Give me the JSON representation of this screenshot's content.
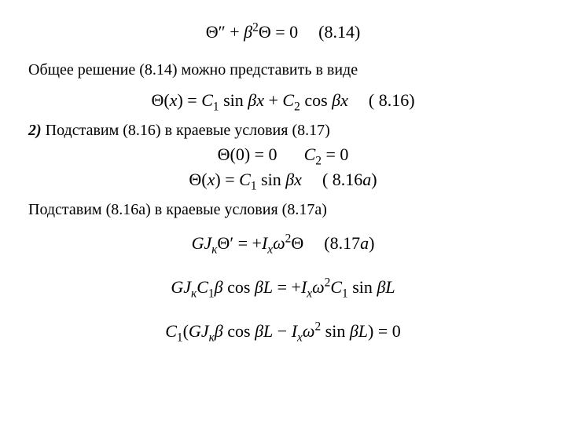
{
  "colors": {
    "background": "#ffffff",
    "text": "#000000"
  },
  "typography": {
    "font_family": "Times New Roman",
    "body_fontsize_pt": 15,
    "equation_fontsize_pt": 17
  },
  "eq_8_14": {
    "lhs_term1_base": "Θ",
    "lhs_term1_primes": "″",
    "plus": " + ",
    "beta": "β",
    "beta_exp": "2",
    "theta2": "Θ",
    "eq_zero": " = 0",
    "tag": "(8.14)"
  },
  "text_1": "Общее решение (8.14) можно представить в виде",
  "eq_8_16": {
    "lhs": "Θ(",
    "lhs_var": "x",
    "lhs_close": ")",
    "eq": " = ",
    "C": "C",
    "sub1": "1",
    "sin": " sin ",
    "beta": "β",
    "x": "x",
    "plus": " + ",
    "sub2": "2",
    "cos": " cos ",
    "tag": "( 8.16)"
  },
  "text_2_pre": "2)",
  "text_2": " Подставим (8.16) в краевые условия (8.17)",
  "eq_bc0": {
    "lhs": "Θ(0) = 0",
    "rhs_C": "C",
    "rhs_sub": "2",
    "rhs_eq0": " = 0"
  },
  "eq_8_16a": {
    "lhs": "Θ(",
    "lhs_var": "x",
    "lhs_close": ")",
    "eq": " = ",
    "C": "C",
    "sub1": "1",
    "sin": " sin ",
    "beta": "β",
    "x": "x",
    "tag_open": "( 8.16",
    "tag_a": "a",
    "tag_close": ")"
  },
  "text_3": "Подставим (8.16а) в краевые условия (8.17а)",
  "eq_8_17a": {
    "G": "G",
    "J": "J",
    "J_sub": "к",
    "Theta": "Θ",
    "prime": "′",
    "eq_plus": " = +",
    "I": "I",
    "I_sub": "x",
    "omega": "ω",
    "omega_exp": "2",
    "Theta2": "Θ",
    "tag_open": "(8.17",
    "tag_a": "a",
    "tag_close": ")"
  },
  "eq_line5": {
    "G": "G",
    "J": "J",
    "J_sub": "к",
    "C": "C",
    "C_sub": "1",
    "beta": "β",
    "cos": " cos ",
    "L": "L",
    "eq_plus": " = +",
    "I": "I",
    "I_sub": "x",
    "omega": "ω",
    "omega_exp": "2",
    "sin": " sin "
  },
  "eq_line6": {
    "C": "C",
    "C_sub": "1",
    "open": "(",
    "G": "G",
    "J": "J",
    "J_sub": "к",
    "beta": "β",
    "cos": " cos ",
    "L": "L",
    "minus": " − ",
    "I": "I",
    "I_sub": "x",
    "omega": "ω",
    "omega_exp": "2",
    "sin": " sin ",
    "close": ")",
    "eq_zero": " = 0"
  }
}
